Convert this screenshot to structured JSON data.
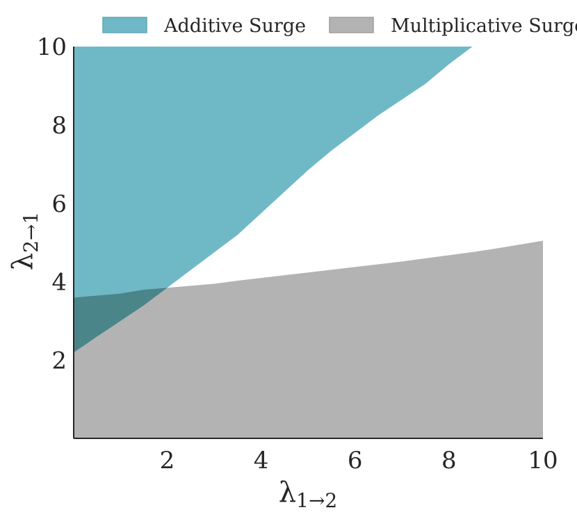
{
  "chart_data": {
    "type": "area",
    "title": "",
    "xlabel": "λ1→2",
    "ylabel": "λ2→1",
    "xlim": [
      0.01,
      10
    ],
    "ylim": [
      0.01,
      10
    ],
    "xticks": [
      2,
      4,
      6,
      8,
      10
    ],
    "yticks": [
      2,
      4,
      6,
      8,
      10
    ],
    "grid": false,
    "legend_position": "top",
    "series": [
      {
        "name": "Additive Surge",
        "color": "#6fb9c6",
        "region": "above",
        "boundary": {
          "x": [
            0.01,
            0.5,
            1.0,
            1.5,
            2.0,
            2.5,
            3.0,
            3.5,
            4.0,
            4.5,
            5.0,
            5.5,
            6.0,
            6.5,
            7.0,
            7.5,
            8.0,
            8.5
          ],
          "y": [
            2.2,
            2.6,
            3.0,
            3.4,
            3.85,
            4.3,
            4.75,
            5.2,
            5.75,
            6.3,
            6.85,
            7.35,
            7.8,
            8.25,
            8.65,
            9.05,
            9.55,
            10.0
          ]
        }
      },
      {
        "name": "Multiplicative Surge",
        "color": "#b3b3b3",
        "region": "below",
        "boundary": {
          "x": [
            0.01,
            0.5,
            1.0,
            1.5,
            2.0,
            2.5,
            3.0,
            3.5,
            4.0,
            4.5,
            5.0,
            5.5,
            6.0,
            6.5,
            7.0,
            7.5,
            8.0,
            8.5,
            9.0,
            9.5,
            10.0
          ],
          "y": [
            3.6,
            3.65,
            3.7,
            3.8,
            3.85,
            3.9,
            3.95,
            4.03,
            4.1,
            4.17,
            4.24,
            4.31,
            4.38,
            4.45,
            4.52,
            4.6,
            4.68,
            4.76,
            4.85,
            4.95,
            5.05
          ]
        }
      }
    ],
    "overlap_color": "#4a8589"
  }
}
